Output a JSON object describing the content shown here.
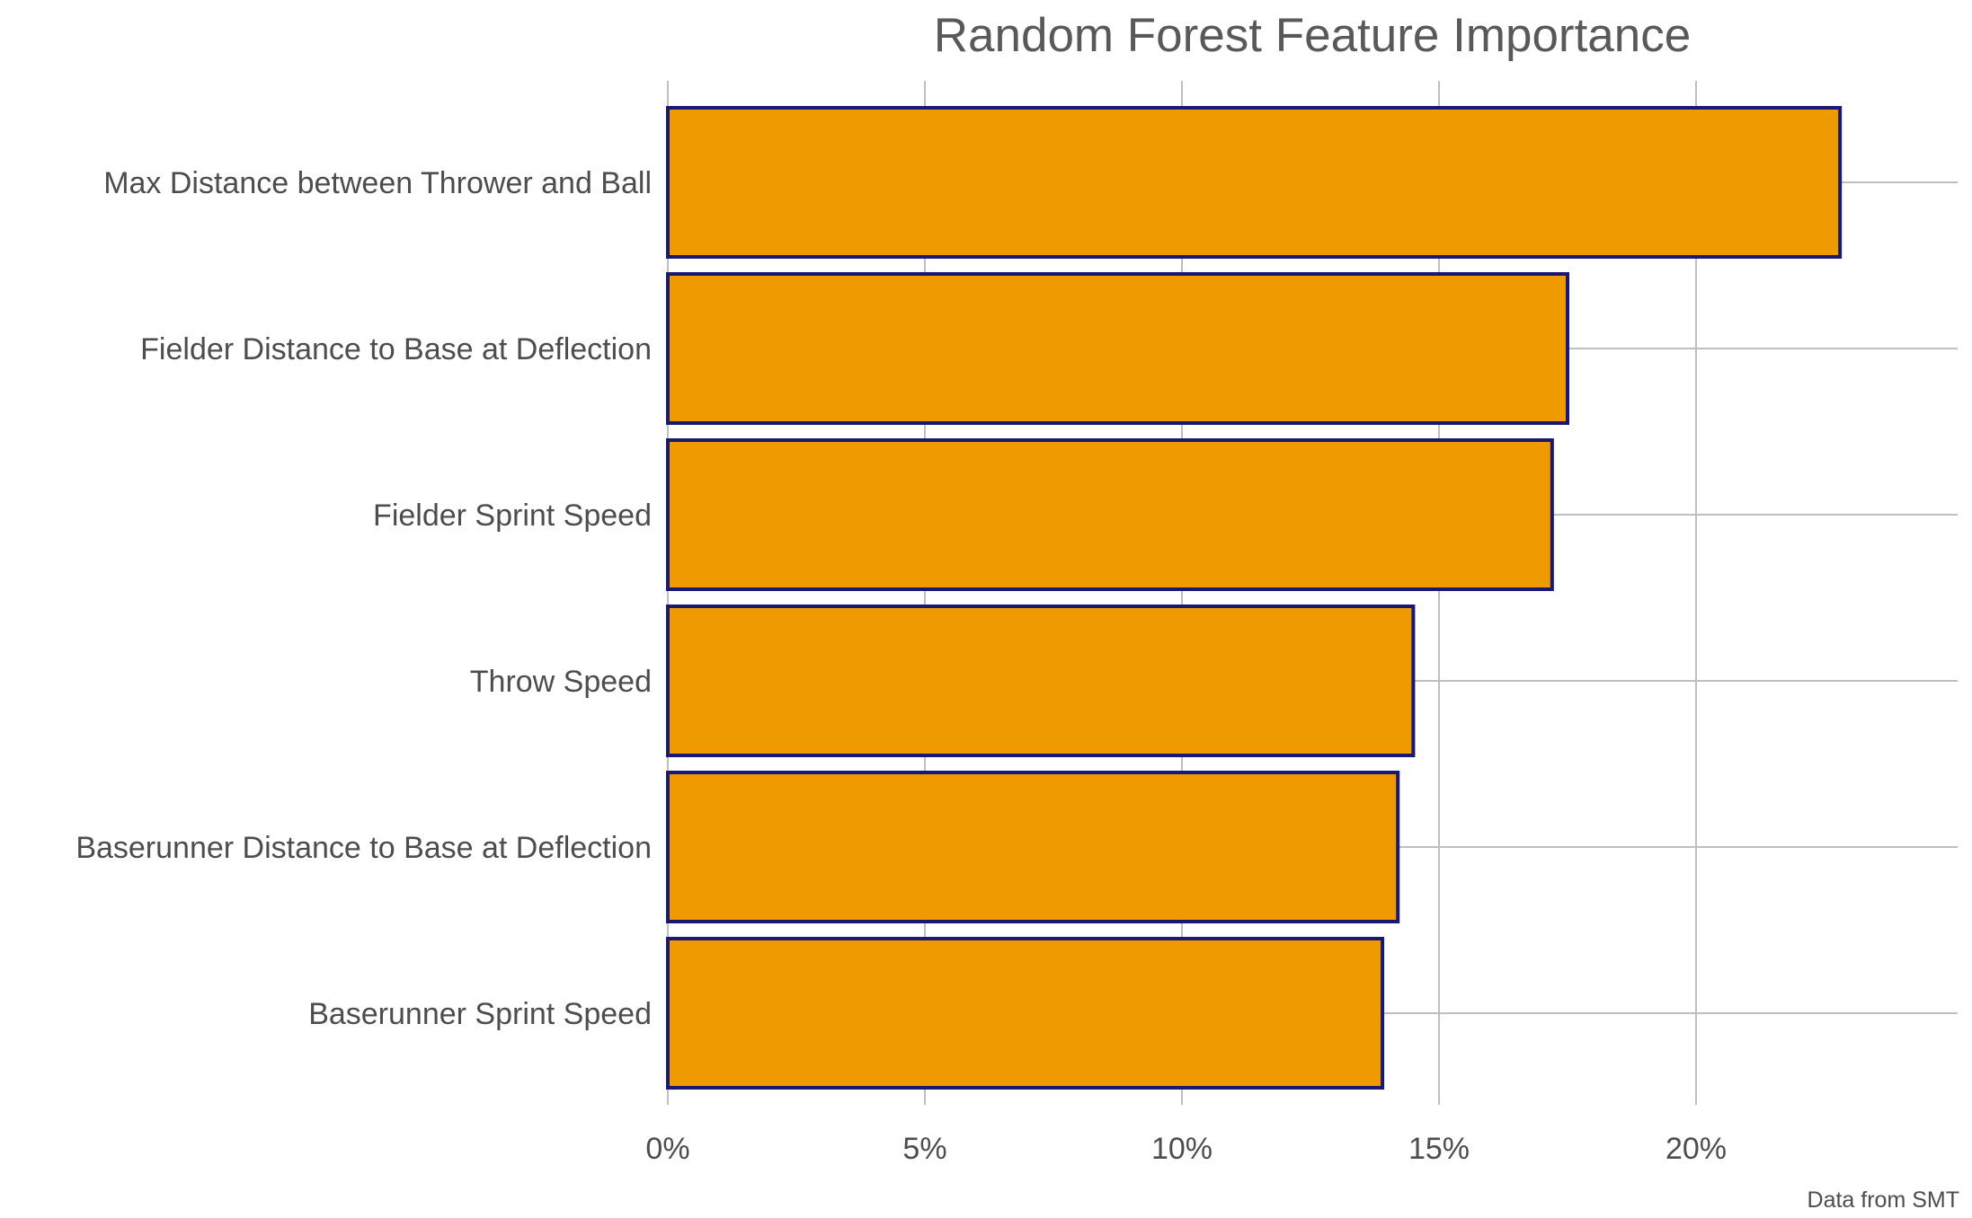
{
  "chart_data": {
    "type": "bar",
    "orientation": "horizontal",
    "title": "Random Forest Feature Importance",
    "caption": "Data from SMT",
    "categories": [
      "Max Distance between Thrower and Ball",
      "Fielder Distance to Base at Deflection",
      "Fielder Sprint Speed",
      "Throw Speed",
      "Baserunner Distance to Base at Deflection",
      "Baserunner Sprint Speed"
    ],
    "values": [
      22.8,
      17.5,
      17.2,
      14.5,
      14.2,
      13.9
    ],
    "value_unit": "percent",
    "x_ticks": [
      0,
      5,
      10,
      15,
      20
    ],
    "x_tick_labels": [
      "0%",
      "5%",
      "10%",
      "15%",
      "20%"
    ],
    "xlim": [
      0,
      23.9
    ],
    "xlabel": "",
    "ylabel": "",
    "grid": true,
    "bar_fill": "#EE9A00",
    "bar_outline": "#191970"
  }
}
